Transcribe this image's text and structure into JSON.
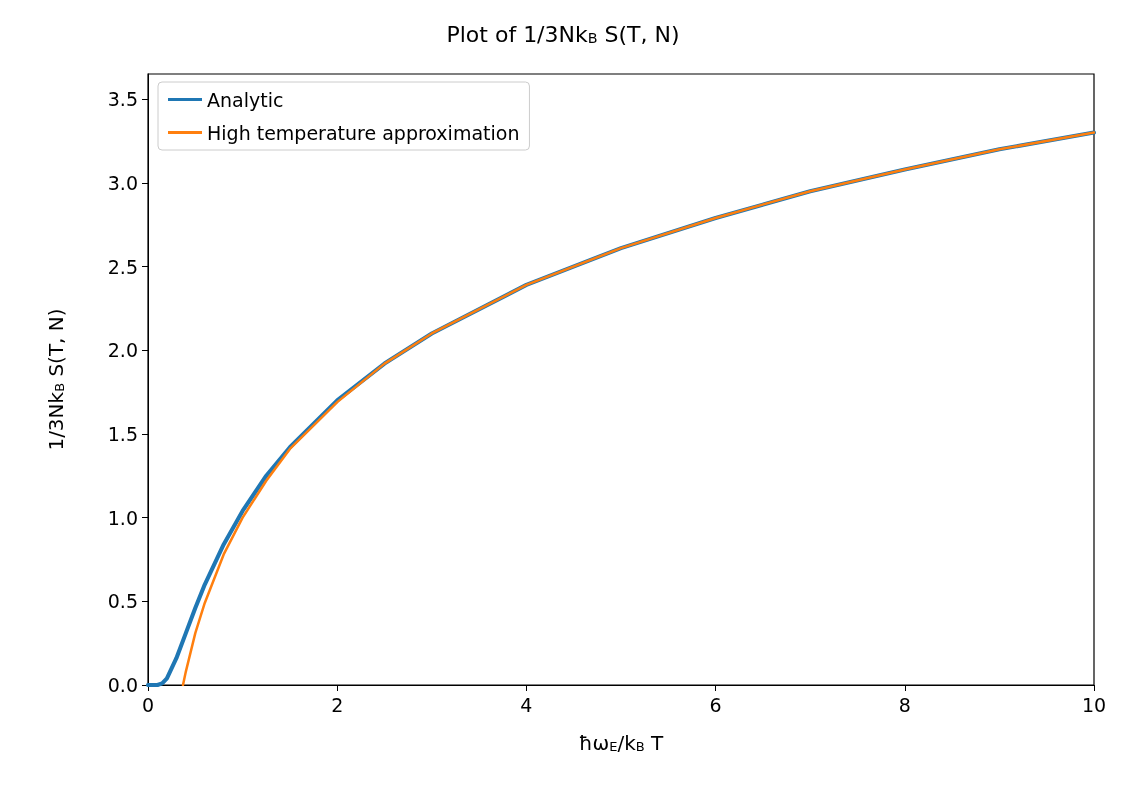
{
  "chart_data": {
    "type": "line",
    "title": "Plot of 1/3Nk$_{B}$ S(T, N)",
    "xlabel": "ħω$_{E}$/k$_{B}$ T",
    "ylabel": "1/3Nk$_{B}$ S(T, N)",
    "series": [
      {
        "name": "Analytic",
        "color": "#1f77b4",
        "x": [
          0,
          0.1,
          0.15,
          0.2,
          0.3,
          0.4,
          0.5,
          0.6,
          0.8,
          1,
          1.25,
          1.5,
          2,
          2.5,
          3,
          4,
          5,
          6,
          7,
          8,
          9,
          10
        ],
        "values": [
          0,
          0,
          0.01,
          0.04,
          0.16,
          0.31,
          0.46,
          0.6,
          0.84,
          1.04,
          1.25,
          1.42,
          1.7,
          1.92,
          2.1,
          2.39,
          2.61,
          2.79,
          2.95,
          3.08,
          3.2,
          3.3
        ]
      },
      {
        "name": "High temperature approximation",
        "color": "#ff7f0e",
        "x": [
          0.37,
          0.4,
          0.5,
          0.6,
          0.8,
          1,
          1.25,
          1.5,
          2,
          2.5,
          3,
          4,
          5,
          6,
          7,
          8,
          9,
          10
        ],
        "values": [
          0,
          0.08,
          0.31,
          0.49,
          0.78,
          1,
          1.22,
          1.41,
          1.69,
          1.92,
          2.1,
          2.39,
          2.61,
          2.79,
          2.95,
          3.08,
          3.2,
          3.3
        ]
      }
    ],
    "xlim": [
      0,
      10
    ],
    "ylim": [
      0,
      3.65
    ],
    "xticks": [
      0,
      2,
      4,
      6,
      8,
      10
    ],
    "yticks": [
      {
        "value": 0,
        "label": "0.0"
      },
      {
        "value": 0.5,
        "label": "0.5"
      },
      {
        "value": 1,
        "label": "1.0"
      },
      {
        "value": 1.5,
        "label": "1.5"
      },
      {
        "value": 2,
        "label": "2.0"
      },
      {
        "value": 2.5,
        "label": "2.5"
      },
      {
        "value": 3,
        "label": "3.0"
      },
      {
        "value": 3.5,
        "label": "3.5"
      }
    ],
    "grid": false,
    "legend": "top left",
    "marker": "none",
    "line_style": "solid"
  }
}
